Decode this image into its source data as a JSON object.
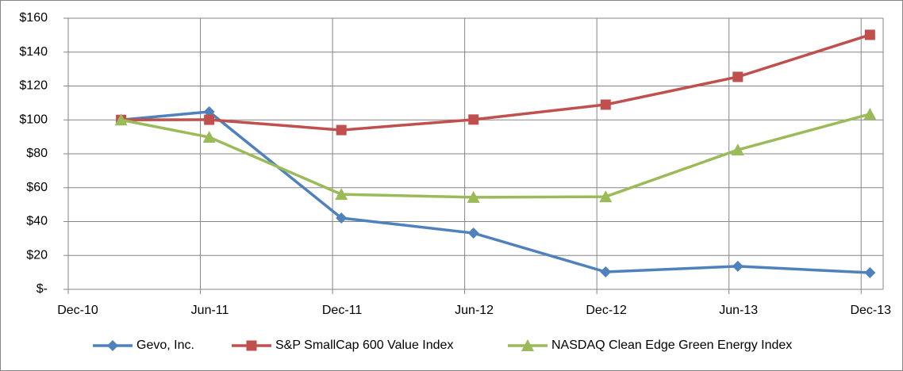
{
  "chart_data": {
    "type": "line",
    "x": [
      2.4,
      6.4,
      12.4,
      18.4,
      24.4,
      30.4,
      36.4
    ],
    "xlim": [
      0,
      37
    ],
    "xticks": [
      {
        "value": 0,
        "label": "Dec-10"
      },
      {
        "value": 6,
        "label": "Jun-11"
      },
      {
        "value": 12,
        "label": "Dec-11"
      },
      {
        "value": 18,
        "label": "Jun-12"
      },
      {
        "value": 24,
        "label": "Dec-12"
      },
      {
        "value": 30,
        "label": "Jun-13"
      },
      {
        "value": 36,
        "label": "Dec-13"
      }
    ],
    "ylim": [
      0,
      160
    ],
    "yticks": [
      {
        "value": 0,
        "label": "$-"
      },
      {
        "value": 20,
        "label": "$20"
      },
      {
        "value": 40,
        "label": "$40"
      },
      {
        "value": 60,
        "label": "$60"
      },
      {
        "value": 80,
        "label": "$80"
      },
      {
        "value": 100,
        "label": "$100"
      },
      {
        "value": 120,
        "label": "$120"
      },
      {
        "value": 140,
        "label": "$140"
      },
      {
        "value": 160,
        "label": "$160"
      }
    ],
    "grid": true,
    "legend": "bottom",
    "series": [
      {
        "name": "Gevo, Inc.",
        "color": "#4f81bd",
        "marker": "diamond",
        "values": [
          100,
          104.8,
          42.1,
          33.2,
          10.3,
          13.6,
          9.8
        ]
      },
      {
        "name": "S&P SmallCap 600 Value Index",
        "color": "#c0504d",
        "marker": "square",
        "values": [
          100,
          100.1,
          94.0,
          100.2,
          109.0,
          125.4,
          150.2
        ]
      },
      {
        "name": "NASDAQ Clean Edge Green Energy Index",
        "color": "#9bbb59",
        "marker": "triangle",
        "values": [
          100,
          89.8,
          56.1,
          54.3,
          54.7,
          82.3,
          103.4
        ]
      }
    ]
  }
}
